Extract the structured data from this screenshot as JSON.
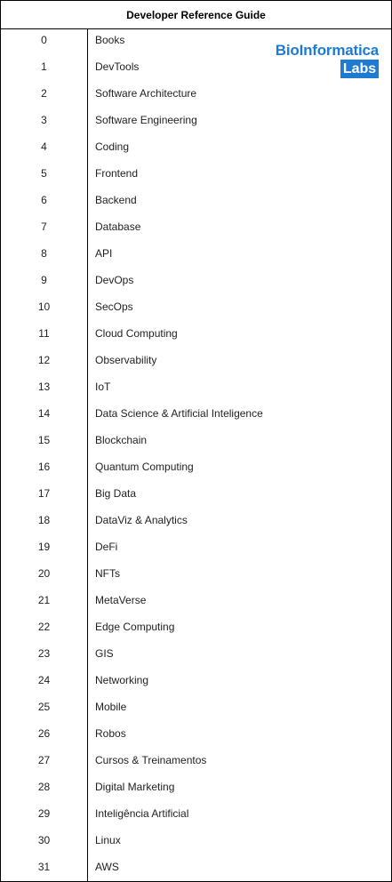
{
  "title": "Developer Reference Guide",
  "logo": {
    "line1": "BioInformatica",
    "line2": "Labs",
    "color": "#1f7bd1"
  },
  "rows": [
    {
      "num": "0",
      "label": "Books"
    },
    {
      "num": "1",
      "label": "DevTools"
    },
    {
      "num": "2",
      "label": "Software Architecture"
    },
    {
      "num": "3",
      "label": "Software Engineering"
    },
    {
      "num": "4",
      "label": "Coding"
    },
    {
      "num": "5",
      "label": "Frontend"
    },
    {
      "num": "6",
      "label": "Backend"
    },
    {
      "num": "7",
      "label": "Database"
    },
    {
      "num": "8",
      "label": "API"
    },
    {
      "num": "9",
      "label": "DevOps"
    },
    {
      "num": "10",
      "label": "SecOps"
    },
    {
      "num": "11",
      "label": "Cloud Computing"
    },
    {
      "num": "12",
      "label": "Observability"
    },
    {
      "num": "13",
      "label": "IoT"
    },
    {
      "num": "14",
      "label": "Data Science & Artificial Inteligence"
    },
    {
      "num": "15",
      "label": "Blockchain"
    },
    {
      "num": "16",
      "label": "Quantum Computing"
    },
    {
      "num": "17",
      "label": "Big Data"
    },
    {
      "num": "18",
      "label": "DataViz & Analytics"
    },
    {
      "num": "19",
      "label": "DeFi"
    },
    {
      "num": "20",
      "label": "NFTs"
    },
    {
      "num": "21",
      "label": "MetaVerse"
    },
    {
      "num": "22",
      "label": "Edge Computing"
    },
    {
      "num": "23",
      "label": "GIS"
    },
    {
      "num": "24",
      "label": "Networking"
    },
    {
      "num": "25",
      "label": "Mobile"
    },
    {
      "num": "26",
      "label": "Robos"
    },
    {
      "num": "27",
      "label": "Cursos & Treinamentos"
    },
    {
      "num": "28",
      "label": "Digital Marketing"
    },
    {
      "num": "29",
      "label": "Inteligência Artificial"
    },
    {
      "num": "30",
      "label": "Linux"
    },
    {
      "num": "31",
      "label": "AWS"
    }
  ]
}
